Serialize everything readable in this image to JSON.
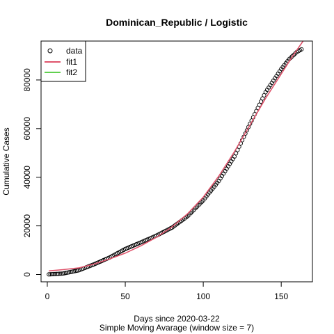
{
  "chart_data": {
    "type": "scatter",
    "title": "Dominican_Republic / Logistic",
    "xlabel": "Days since 2020-03-22",
    "xlabel2": "Simple Moving Avarage (window size = 7)",
    "ylabel": "Cumulative Cases",
    "xlim": [
      -4,
      170
    ],
    "ylim": [
      -3000,
      96000
    ],
    "xticks": [
      0,
      50,
      100,
      150
    ],
    "yticks": [
      0,
      20000,
      40000,
      60000,
      80000
    ],
    "grid": false,
    "legend_position": "top-left",
    "legend": [
      {
        "label": "data",
        "kind": "point",
        "color": "#000000"
      },
      {
        "label": "fit1",
        "kind": "line",
        "color": "#DF536B"
      },
      {
        "label": "fit2",
        "kind": "line",
        "color": "#61D04F"
      }
    ],
    "series": [
      {
        "name": "data",
        "kind": "points",
        "color": "#000000",
        "points": [
          [
            1,
            60
          ],
          [
            10,
            400
          ],
          [
            20,
            1700
          ],
          [
            30,
            4200
          ],
          [
            40,
            7000
          ],
          [
            50,
            10500
          ],
          [
            60,
            13200
          ],
          [
            70,
            16000
          ],
          [
            80,
            19300
          ],
          [
            90,
            24000
          ],
          [
            100,
            30500
          ],
          [
            110,
            38500
          ],
          [
            120,
            48500
          ],
          [
            130,
            62000
          ],
          [
            140,
            75000
          ],
          [
            150,
            84500
          ],
          [
            155,
            88500
          ],
          [
            160,
            91500
          ],
          [
            163,
            92600
          ]
        ]
      },
      {
        "name": "fit1",
        "kind": "line",
        "color": "#DF536B",
        "points": [
          [
            1,
            1500
          ],
          [
            10,
            2000
          ],
          [
            20,
            2700
          ],
          [
            30,
            4300
          ],
          [
            40,
            6400
          ],
          [
            50,
            8800
          ],
          [
            60,
            11800
          ],
          [
            70,
            15300
          ],
          [
            80,
            19600
          ],
          [
            90,
            25000
          ],
          [
            100,
            31800
          ],
          [
            110,
            40500
          ],
          [
            120,
            50500
          ],
          [
            130,
            61500
          ],
          [
            140,
            72500
          ],
          [
            150,
            82500
          ],
          [
            157,
            89500
          ],
          [
            164,
            96500
          ]
        ]
      },
      {
        "name": "fit2",
        "kind": "line",
        "color": "#61D04F",
        "points": []
      }
    ]
  }
}
